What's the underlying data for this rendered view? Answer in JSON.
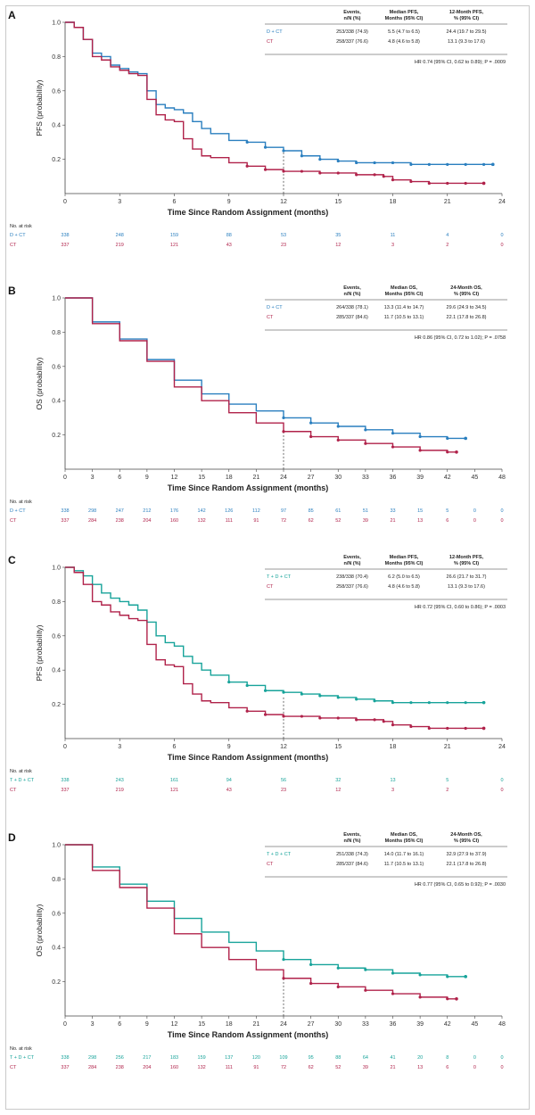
{
  "figure": {
    "x_axis_label": "Time Since Random Assignment (months)",
    "risk_header": "No. at risk",
    "colors": {
      "D_CT": "#2a7fbf",
      "TD_CT": "#17a39a",
      "CT": "#b0224a"
    }
  },
  "chart_data": [
    {
      "panel": "A",
      "type": "line",
      "xlabel": "Time Since Random Assignment (months)",
      "ylabel": "PFS (probability)",
      "xlim": [
        0,
        24
      ],
      "ylim": [
        0,
        1.0
      ],
      "xticks": [
        0,
        3,
        6,
        9,
        12,
        15,
        18,
        21,
        24
      ],
      "yticks": [
        0.2,
        0.4,
        0.6,
        0.8,
        1.0
      ],
      "landmark": 12,
      "table": {
        "headers": [
          "Events,\nn/N (%)",
          "Median PFS,\nMonths (95% CI)",
          "12-Month PFS,\n% (95% CI)"
        ],
        "rows": [
          {
            "name": "D + CT",
            "events": "253/338 (74.9)",
            "median": "5.5 (4.7 to 6.5)",
            "landmark": "24.4 (19.7 to 29.5)"
          },
          {
            "name": "CT",
            "events": "258/337 (76.6)",
            "median": "4.8 (4.6 to 5.8)",
            "landmark": "13.1 (9.3 to 17.6)"
          }
        ],
        "hr": "HR 0.74 (95% CI, 0.62 to 0.89); P = .0009"
      },
      "risk": {
        "x": [
          0,
          3,
          6,
          9,
          12,
          15,
          18,
          21,
          24
        ],
        "rows": [
          {
            "name": "D + CT",
            "values": [
              "338",
              "248",
              "159",
              "88",
              "53",
              "35",
              "11",
              "4",
              "0"
            ]
          },
          {
            "name": "CT",
            "values": [
              "337",
              "219",
              "121",
              "43",
              "23",
              "12",
              "3",
              "2",
              "0"
            ]
          }
        ]
      },
      "series": [
        {
          "name": "D + CT",
          "color_key": "D_CT",
          "x": [
            0,
            0.5,
            1,
            1.5,
            2,
            2.5,
            3,
            3.5,
            4,
            4.5,
            5,
            5.5,
            6,
            6.5,
            7,
            7.5,
            8,
            9,
            10,
            11,
            12,
            13,
            14,
            15,
            16,
            17,
            18,
            19,
            20,
            21,
            22,
            23,
            23.5
          ],
          "y": [
            1.0,
            0.97,
            0.9,
            0.82,
            0.8,
            0.75,
            0.73,
            0.71,
            0.7,
            0.6,
            0.52,
            0.5,
            0.49,
            0.47,
            0.42,
            0.38,
            0.35,
            0.31,
            0.3,
            0.27,
            0.25,
            0.22,
            0.2,
            0.19,
            0.18,
            0.18,
            0.18,
            0.17,
            0.17,
            0.17,
            0.17,
            0.17,
            0.17
          ]
        },
        {
          "name": "CT",
          "color_key": "CT",
          "x": [
            0,
            0.5,
            1,
            1.5,
            2,
            2.5,
            3,
            3.5,
            4,
            4.5,
            5,
            5.5,
            6,
            6.5,
            7,
            7.5,
            8,
            9,
            10,
            11,
            12,
            13,
            14,
            15,
            16,
            17,
            17.5,
            18,
            19,
            20,
            21,
            22,
            23
          ],
          "y": [
            1.0,
            0.97,
            0.9,
            0.8,
            0.78,
            0.74,
            0.72,
            0.7,
            0.69,
            0.55,
            0.46,
            0.43,
            0.42,
            0.32,
            0.26,
            0.22,
            0.21,
            0.18,
            0.16,
            0.14,
            0.13,
            0.13,
            0.12,
            0.12,
            0.11,
            0.11,
            0.1,
            0.08,
            0.07,
            0.06,
            0.06,
            0.06,
            0.06
          ]
        }
      ]
    },
    {
      "panel": "B",
      "type": "line",
      "xlabel": "Time Since Random Assignment (months)",
      "ylabel": "OS (probability)",
      "xlim": [
        0,
        48
      ],
      "ylim": [
        0,
        1.0
      ],
      "xticks": [
        0,
        3,
        6,
        9,
        12,
        15,
        18,
        21,
        24,
        27,
        30,
        33,
        36,
        39,
        42,
        45,
        48
      ],
      "yticks": [
        0.2,
        0.4,
        0.6,
        0.8,
        1.0
      ],
      "landmark": 24,
      "table": {
        "headers": [
          "Events,\nn/N (%)",
          "Median OS,\nMonths (95% CI)",
          "24-Month OS,\n% (95% CI)"
        ],
        "rows": [
          {
            "name": "D + CT",
            "events": "264/338 (78.1)",
            "median": "13.3 (11.4 to 14.7)",
            "landmark": "29.6 (24.9 to 34.5)"
          },
          {
            "name": "CT",
            "events": "285/337 (84.6)",
            "median": "11.7 (10.5 to 13.1)",
            "landmark": "22.1 (17.8 to 26.8)"
          }
        ],
        "hr": "HR 0.86 (95% CI, 0.72 to 1.02); P = .0758"
      },
      "risk": {
        "x": [
          0,
          3,
          6,
          9,
          12,
          15,
          18,
          21,
          24,
          27,
          30,
          33,
          36,
          39,
          42,
          45,
          48
        ],
        "rows": [
          {
            "name": "D + CT",
            "values": [
              "338",
              "298",
              "247",
              "212",
              "176",
              "142",
              "126",
              "112",
              "97",
              "85",
              "61",
              "51",
              "33",
              "15",
              "5",
              "0",
              "0"
            ]
          },
          {
            "name": "CT",
            "values": [
              "337",
              "284",
              "238",
              "204",
              "160",
              "132",
              "111",
              "91",
              "72",
              "62",
              "52",
              "39",
              "21",
              "13",
              "6",
              "0",
              "0"
            ]
          }
        ]
      },
      "series": [
        {
          "name": "D + CT",
          "color_key": "D_CT",
          "x": [
            0,
            3,
            6,
            9,
            12,
            15,
            18,
            21,
            24,
            27,
            30,
            33,
            36,
            39,
            42,
            44
          ],
          "y": [
            1.0,
            0.86,
            0.76,
            0.64,
            0.52,
            0.44,
            0.38,
            0.34,
            0.3,
            0.27,
            0.25,
            0.23,
            0.21,
            0.19,
            0.18,
            0.18
          ]
        },
        {
          "name": "CT",
          "color_key": "CT",
          "x": [
            0,
            3,
            6,
            9,
            12,
            15,
            18,
            21,
            24,
            27,
            30,
            33,
            36,
            39,
            42,
            43
          ],
          "y": [
            1.0,
            0.85,
            0.75,
            0.63,
            0.48,
            0.4,
            0.33,
            0.27,
            0.22,
            0.19,
            0.17,
            0.15,
            0.13,
            0.11,
            0.1,
            0.1
          ]
        }
      ]
    },
    {
      "panel": "C",
      "type": "line",
      "xlabel": "Time Since Random Assignment (months)",
      "ylabel": "PFS (probability)",
      "xlim": [
        0,
        24
      ],
      "ylim": [
        0,
        1.0
      ],
      "xticks": [
        0,
        3,
        6,
        9,
        12,
        15,
        18,
        21,
        24
      ],
      "yticks": [
        0.2,
        0.4,
        0.6,
        0.8,
        1.0
      ],
      "landmark": 12,
      "table": {
        "headers": [
          "Events,\nn/N (%)",
          "Median PFS,\nMonths (95% CI)",
          "12-Month PFS,\n% (95% CI)"
        ],
        "rows": [
          {
            "name": "T + D + CT",
            "events": "238/338 (70.4)",
            "median": "6.2 (5.0 to 6.5)",
            "landmark": "26.6 (21.7 to 31.7)"
          },
          {
            "name": "CT",
            "events": "258/337 (76.6)",
            "median": "4.8 (4.6 to 5.8)",
            "landmark": "13.1 (9.3 to 17.6)"
          }
        ],
        "hr": "HR 0.72 (95% CI, 0.60 to 0.86); P = .0003"
      },
      "risk": {
        "x": [
          0,
          3,
          6,
          9,
          12,
          15,
          18,
          21,
          24
        ],
        "rows": [
          {
            "name": "T + D + CT",
            "values": [
              "338",
              "243",
              "161",
              "94",
              "56",
              "32",
              "13",
              "5",
              "0"
            ]
          },
          {
            "name": "CT",
            "values": [
              "337",
              "219",
              "121",
              "43",
              "23",
              "12",
              "3",
              "2",
              "0"
            ]
          }
        ]
      },
      "series": [
        {
          "name": "T + D + CT",
          "color_key": "TD_CT",
          "x": [
            0,
            0.5,
            1,
            1.5,
            2,
            2.5,
            3,
            3.5,
            4,
            4.5,
            5,
            5.5,
            6,
            6.5,
            7,
            7.5,
            8,
            9,
            10,
            11,
            12,
            13,
            14,
            15,
            16,
            17,
            18,
            19,
            20,
            21,
            22,
            23
          ],
          "y": [
            1.0,
            0.98,
            0.95,
            0.9,
            0.85,
            0.82,
            0.8,
            0.78,
            0.75,
            0.68,
            0.6,
            0.56,
            0.54,
            0.48,
            0.44,
            0.4,
            0.37,
            0.33,
            0.31,
            0.28,
            0.27,
            0.26,
            0.25,
            0.24,
            0.23,
            0.22,
            0.21,
            0.21,
            0.21,
            0.21,
            0.21,
            0.21
          ]
        },
        {
          "name": "CT",
          "color_key": "CT",
          "x": [
            0,
            0.5,
            1,
            1.5,
            2,
            2.5,
            3,
            3.5,
            4,
            4.5,
            5,
            5.5,
            6,
            6.5,
            7,
            7.5,
            8,
            9,
            10,
            11,
            12,
            13,
            14,
            15,
            16,
            17,
            17.5,
            18,
            19,
            20,
            21,
            22,
            23
          ],
          "y": [
            1.0,
            0.97,
            0.9,
            0.8,
            0.78,
            0.74,
            0.72,
            0.7,
            0.69,
            0.55,
            0.46,
            0.43,
            0.42,
            0.32,
            0.26,
            0.22,
            0.21,
            0.18,
            0.16,
            0.14,
            0.13,
            0.13,
            0.12,
            0.12,
            0.11,
            0.11,
            0.1,
            0.08,
            0.07,
            0.06,
            0.06,
            0.06,
            0.06
          ]
        }
      ]
    },
    {
      "panel": "D",
      "type": "line",
      "xlabel": "Time Since Random Assignment (months)",
      "ylabel": "OS (probability)",
      "xlim": [
        0,
        48
      ],
      "ylim": [
        0,
        1.0
      ],
      "xticks": [
        0,
        3,
        6,
        9,
        12,
        15,
        18,
        21,
        24,
        27,
        30,
        33,
        36,
        39,
        42,
        45,
        48
      ],
      "yticks": [
        0.2,
        0.4,
        0.6,
        0.8,
        1.0
      ],
      "landmark": 24,
      "table": {
        "headers": [
          "Events,\nn/N (%)",
          "Median OS,\nMonths (95% CI)",
          "24-Month OS,\n% (95% CI)"
        ],
        "rows": [
          {
            "name": "T + D + CT",
            "events": "251/338 (74.3)",
            "median": "14.0 (11.7 to 16.1)",
            "landmark": "32.9 (27.9 to 37.9)"
          },
          {
            "name": "CT",
            "events": "285/337 (84.6)",
            "median": "11.7 (10.5 to 13.1)",
            "landmark": "22.1 (17.8 to 26.8)"
          }
        ],
        "hr": "HR 0.77 (95% CI, 0.65 to 0.92); P = .0030"
      },
      "risk": {
        "x": [
          0,
          3,
          6,
          9,
          12,
          15,
          18,
          21,
          24,
          27,
          30,
          33,
          36,
          39,
          42,
          45,
          48
        ],
        "rows": [
          {
            "name": "T + D + CT",
            "values": [
              "338",
              "298",
              "256",
              "217",
              "183",
              "159",
              "137",
              "120",
              "109",
              "95",
              "88",
              "64",
              "41",
              "20",
              "8",
              "0",
              "0"
            ]
          },
          {
            "name": "CT",
            "values": [
              "337",
              "284",
              "238",
              "204",
              "160",
              "132",
              "111",
              "91",
              "72",
              "62",
              "52",
              "39",
              "21",
              "13",
              "6",
              "0",
              "0"
            ]
          }
        ]
      },
      "series": [
        {
          "name": "T + D + CT",
          "color_key": "TD_CT",
          "x": [
            0,
            3,
            6,
            9,
            12,
            15,
            18,
            21,
            24,
            27,
            30,
            33,
            36,
            39,
            42,
            44
          ],
          "y": [
            1.0,
            0.87,
            0.77,
            0.67,
            0.57,
            0.49,
            0.43,
            0.38,
            0.33,
            0.3,
            0.28,
            0.27,
            0.25,
            0.24,
            0.23,
            0.23
          ]
        },
        {
          "name": "CT",
          "color_key": "CT",
          "x": [
            0,
            3,
            6,
            9,
            12,
            15,
            18,
            21,
            24,
            27,
            30,
            33,
            36,
            39,
            42,
            43
          ],
          "y": [
            1.0,
            0.85,
            0.75,
            0.63,
            0.48,
            0.4,
            0.33,
            0.27,
            0.22,
            0.19,
            0.17,
            0.15,
            0.13,
            0.11,
            0.1,
            0.1
          ]
        }
      ]
    }
  ]
}
